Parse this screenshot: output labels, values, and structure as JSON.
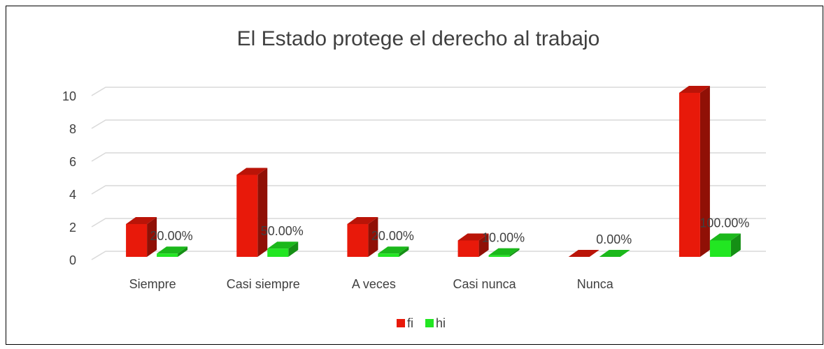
{
  "chart_data": {
    "type": "bar3d",
    "title": "El Estado protege el derecho al trabajo",
    "categories": [
      "Siempre",
      "Casi siempre",
      "A veces",
      "Casi nunca",
      "Nunca",
      null
    ],
    "series": [
      {
        "name": "fi",
        "color": "#e8190a",
        "values": [
          2,
          5,
          2,
          1,
          0,
          10
        ]
      },
      {
        "name": "hi",
        "color": "#22e622",
        "values": [
          0.2,
          0.5,
          0.2,
          0.1,
          0,
          1
        ],
        "value_labels": [
          "20.00%",
          "50.00%",
          "20.00%",
          "10.00%",
          "0.00%",
          "100.00%"
        ]
      }
    ],
    "ylim": [
      0,
      10
    ],
    "yticks": [
      0,
      2,
      4,
      6,
      8,
      10
    ],
    "grid": true,
    "legend": "bottom"
  }
}
